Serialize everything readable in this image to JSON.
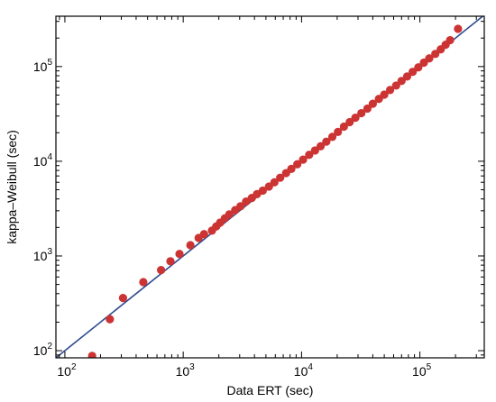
{
  "chart_data": {
    "type": "scatter",
    "title": "",
    "xlabel": "Data ERT (sec)",
    "ylabel": "kappa–Weibull (sec)",
    "x_scale": "log",
    "y_scale": "log",
    "xlim": [
      84,
      350000
    ],
    "ylim": [
      84,
      340000
    ],
    "x_ticks": [
      {
        "base": "10",
        "exp": "2",
        "value": 100
      },
      {
        "base": "10",
        "exp": "3",
        "value": 1000
      },
      {
        "base": "10",
        "exp": "4",
        "value": 10000
      },
      {
        "base": "10",
        "exp": "5",
        "value": 100000
      }
    ],
    "y_ticks": [
      {
        "base": "10",
        "exp": "2",
        "value": 100
      },
      {
        "base": "10",
        "exp": "3",
        "value": 1000
      },
      {
        "base": "10",
        "exp": "4",
        "value": 10000
      },
      {
        "base": "10",
        "exp": "5",
        "value": 100000
      }
    ],
    "grid": false,
    "legend": "none",
    "colors": {
      "points": "#cc3333",
      "line": "#2e4a8e",
      "axes": "#000000"
    },
    "reference_line": {
      "type": "y=x"
    },
    "points": [
      [
        170,
        88
      ],
      [
        240,
        215
      ],
      [
        310,
        360
      ],
      [
        460,
        530
      ],
      [
        650,
        710
      ],
      [
        780,
        880
      ],
      [
        930,
        1050
      ],
      [
        1150,
        1300
      ],
      [
        1350,
        1550
      ],
      [
        1500,
        1700
      ],
      [
        1750,
        1850
      ],
      [
        1900,
        2050
      ],
      [
        2050,
        2250
      ],
      [
        2250,
        2500
      ],
      [
        2450,
        2750
      ],
      [
        2750,
        3050
      ],
      [
        3050,
        3350
      ],
      [
        3400,
        3750
      ],
      [
        3800,
        4100
      ],
      [
        4200,
        4500
      ],
      [
        4700,
        4900
      ],
      [
        5300,
        5400
      ],
      [
        5900,
        6000
      ],
      [
        6600,
        6700
      ],
      [
        7400,
        7500
      ],
      [
        8200,
        8300
      ],
      [
        9200,
        9300
      ],
      [
        10300,
        10400
      ],
      [
        11600,
        11700
      ],
      [
        13000,
        13000
      ],
      [
        14500,
        14400
      ],
      [
        16200,
        16100
      ],
      [
        18200,
        18100
      ],
      [
        20300,
        20400
      ],
      [
        22800,
        23200
      ],
      [
        25500,
        25900
      ],
      [
        28500,
        28800
      ],
      [
        32000,
        32200
      ],
      [
        36000,
        36000
      ],
      [
        40000,
        40500
      ],
      [
        45000,
        45500
      ],
      [
        50000,
        50500
      ],
      [
        56000,
        56500
      ],
      [
        63000,
        63000
      ],
      [
        70000,
        70500
      ],
      [
        78000,
        78500
      ],
      [
        87000,
        88000
      ],
      [
        97000,
        98000
      ],
      [
        108000,
        110000
      ],
      [
        120000,
        122000
      ],
      [
        135000,
        136000
      ],
      [
        150000,
        152000
      ],
      [
        165000,
        170000
      ],
      [
        180000,
        190000
      ],
      [
        210000,
        250000
      ]
    ]
  }
}
